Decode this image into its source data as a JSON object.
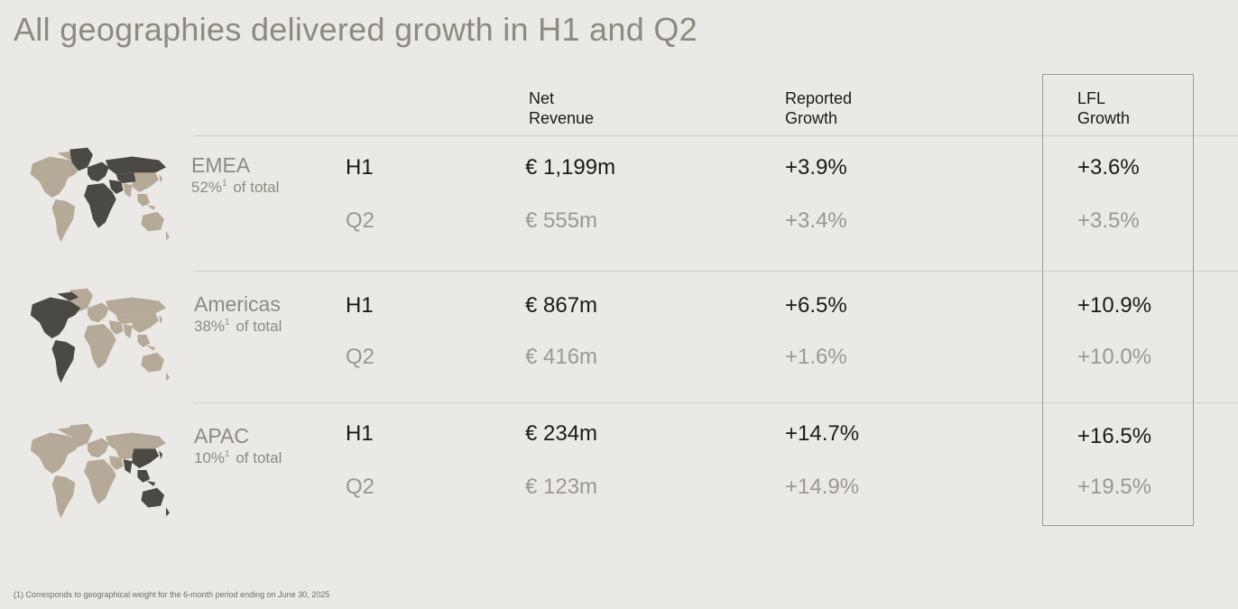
{
  "title": "All geographies delivered growth in H1 and Q2",
  "columns": {
    "net_revenue": [
      "Net",
      "Revenue"
    ],
    "reported_growth": [
      "Reported",
      "Growth"
    ],
    "lfl_growth": [
      "LFL",
      "Growth"
    ]
  },
  "regions": [
    {
      "name": "EMEA",
      "share": "52%",
      "share_note": "1",
      "share_suffix": "of total",
      "highlight": "emea",
      "h1": {
        "period": "H1",
        "revenue": "€ 1,199m",
        "reported": "+3.9%",
        "lfl": "+3.6%"
      },
      "q2": {
        "period": "Q2",
        "revenue": "€ 555m",
        "reported": "+3.4%",
        "lfl": "+3.5%"
      }
    },
    {
      "name": "Americas",
      "share": "38%",
      "share_note": "1",
      "share_suffix": "of total",
      "highlight": "americas",
      "h1": {
        "period": "H1",
        "revenue": "€ 867m",
        "reported": "+6.5%",
        "lfl": "+10.9%"
      },
      "q2": {
        "period": "Q2",
        "revenue": "€ 416m",
        "reported": "+1.6%",
        "lfl": "+10.0%"
      }
    },
    {
      "name": "APAC",
      "share": "10%",
      "share_note": "1",
      "share_suffix": "of total",
      "highlight": "apac",
      "h1": {
        "period": "H1",
        "revenue": "€ 234m",
        "reported": "+14.7%",
        "lfl": "+16.5%"
      },
      "q2": {
        "period": "Q2",
        "revenue": "€ 123m",
        "reported": "+14.9%",
        "lfl": "+19.5%"
      }
    }
  ],
  "footnote": "(1) Corresponds to geographical weight for the 6-month period ending on June 30, 2025",
  "colors": {
    "background": "#ebe9e5",
    "map_dark": "#4a4944",
    "map_light": "#b5aa98",
    "muted_text": "#8d8a82"
  }
}
